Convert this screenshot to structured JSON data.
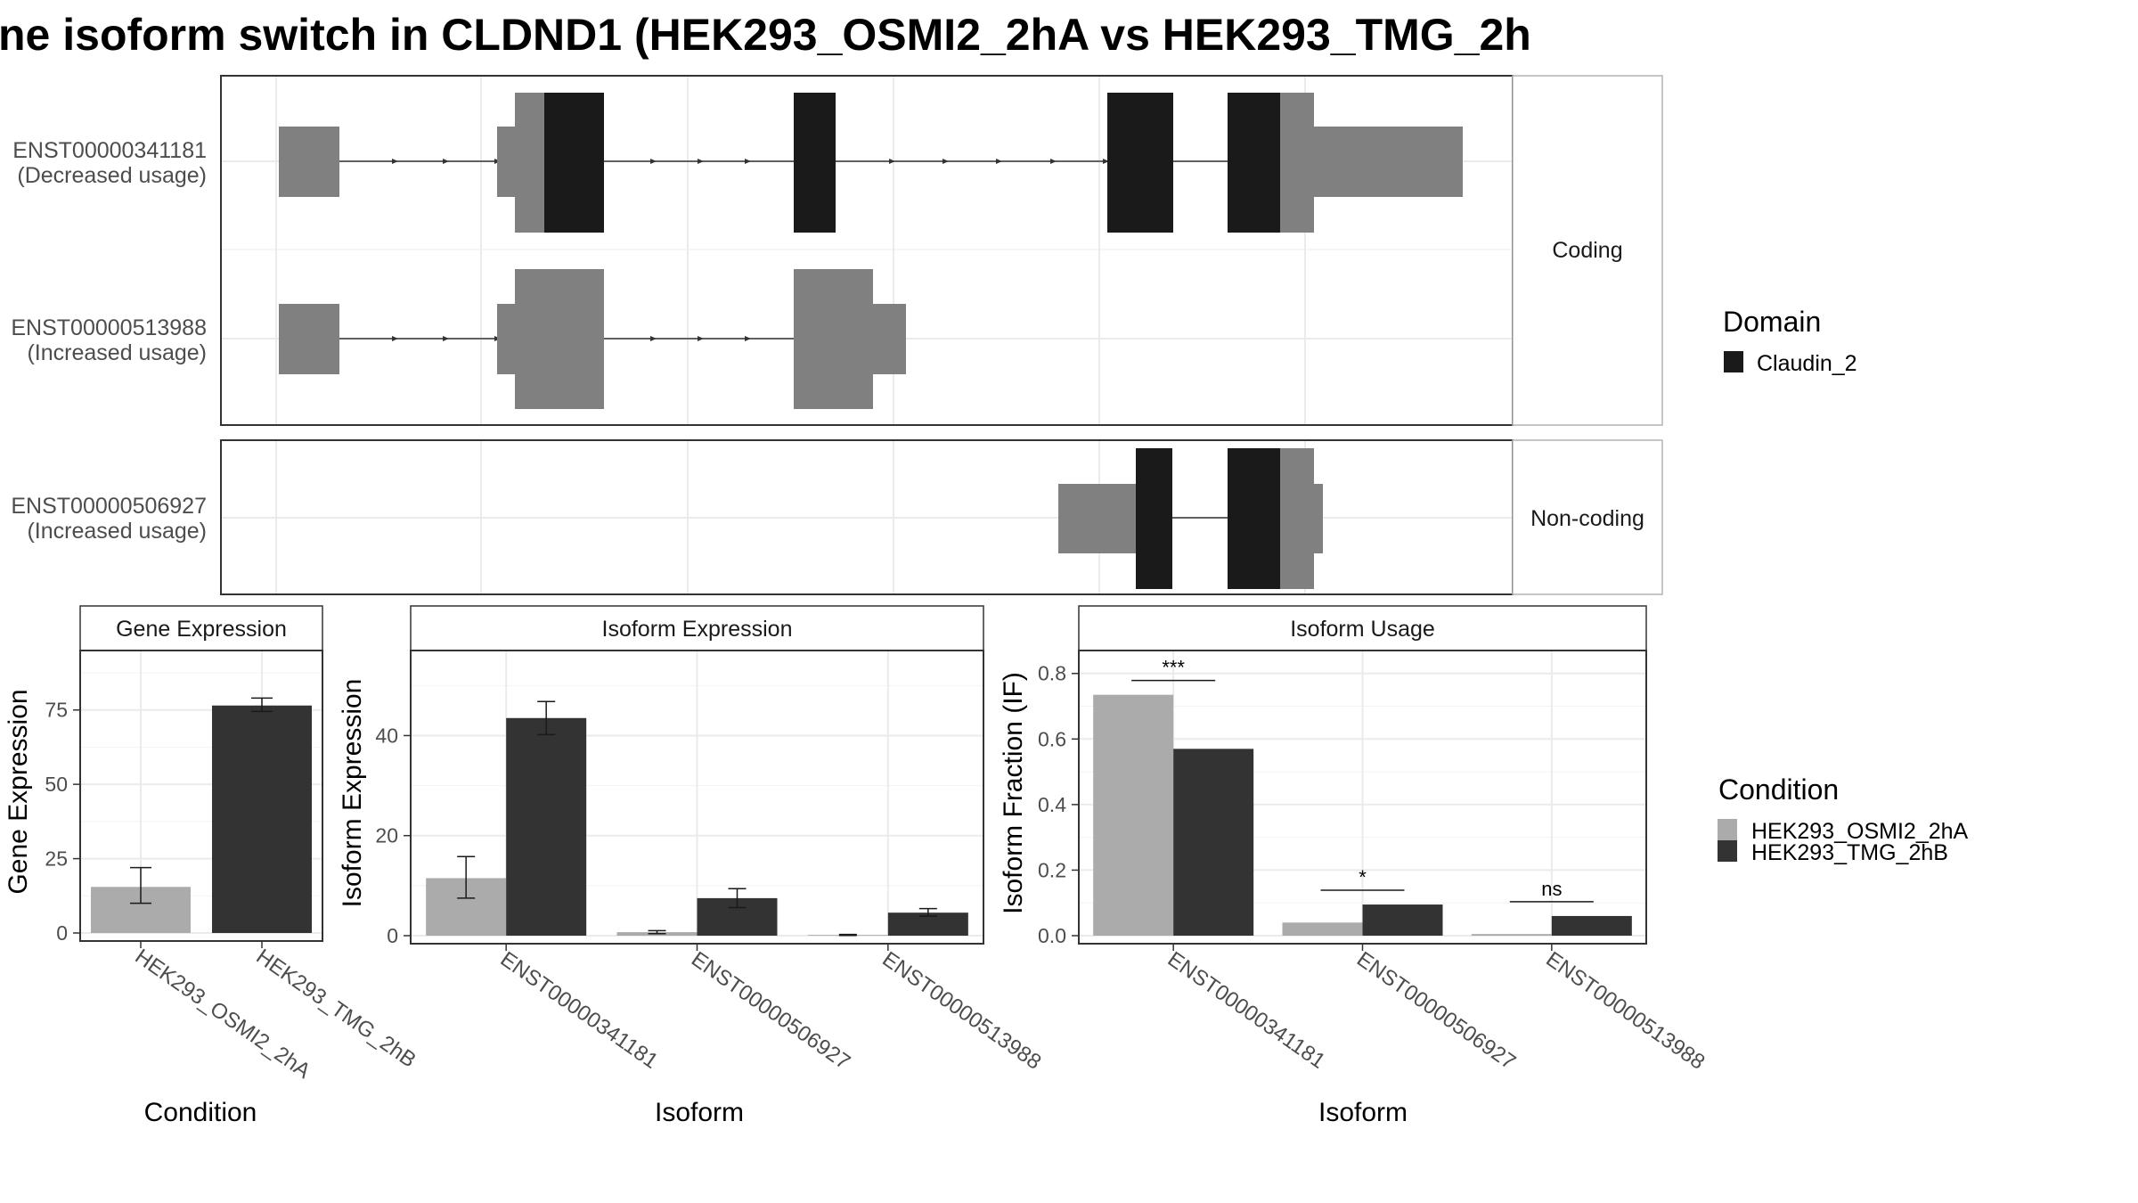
{
  "title": "ne isoform switch in CLDND1 (HEK293_OSMI2_2hA vs HEK293_TMG_2h",
  "colors": {
    "condA": "#ababab",
    "condB": "#333333",
    "exon": "#808080",
    "domain": "#1a1a1a",
    "frame": "#333333",
    "grid": "#ebebeb",
    "strip_border": "#b3b3b3"
  },
  "structure": {
    "groups": [
      {
        "strip": "Coding",
        "transcripts": [
          {
            "id": "ENST00000341181",
            "note": "(Decreased usage)"
          },
          {
            "id": "ENST00000513988",
            "note": "(Increased usage)"
          }
        ]
      },
      {
        "strip": "Non-coding",
        "transcripts": [
          {
            "id": "ENST00000506927",
            "note": "(Increased usage)"
          }
        ]
      }
    ]
  },
  "legend_domain": {
    "title": "Domain",
    "items": [
      {
        "label": "Claudin_2",
        "color": "#1a1a1a"
      }
    ]
  },
  "legend_condition": {
    "title": "Condition",
    "items": [
      {
        "label": "HEK293_OSMI2_2hA",
        "color": "#ababab"
      },
      {
        "label": "HEK293_TMG_2hB",
        "color": "#333333"
      }
    ]
  },
  "chart_data": [
    {
      "type": "bar",
      "strip": "Gene Expression",
      "xlabel": "Condition",
      "ylabel": "Gene Expression",
      "ylim": [
        0,
        95
      ],
      "yticks": [
        0,
        25,
        50,
        75
      ],
      "categories": [
        "HEK293_OSMI2_2hA",
        "HEK293_TMG_2hB"
      ],
      "values": [
        15.5,
        76.5
      ],
      "errors": [
        [
          10,
          22
        ],
        [
          74.5,
          79
        ]
      ]
    },
    {
      "type": "bar",
      "strip": "Isoform Expression",
      "xlabel": "Isoform",
      "ylabel": "Isoform Expression",
      "ylim": [
        0,
        57
      ],
      "yticks": [
        0,
        20,
        40
      ],
      "categories": [
        "ENST00000341181",
        "ENST00000506927",
        "ENST00000513988"
      ],
      "series": [
        {
          "name": "HEK293_OSMI2_2hA",
          "values": [
            11.5,
            0.7,
            0.15
          ],
          "errors": [
            [
              7.5,
              15.8
            ],
            [
              0.4,
              1.0
            ],
            [
              0.05,
              0.25
            ]
          ]
        },
        {
          "name": "HEK293_TMG_2hB",
          "values": [
            43.5,
            7.5,
            4.6
          ],
          "errors": [
            [
              40.2,
              46.8
            ],
            [
              5.6,
              9.4
            ],
            [
              3.9,
              5.4
            ]
          ]
        }
      ]
    },
    {
      "type": "bar",
      "strip": "Isoform Usage",
      "xlabel": "Isoform",
      "ylabel": "Isoform Fraction (IF)",
      "ylim": [
        0,
        0.87
      ],
      "yticks": [
        0.0,
        0.2,
        0.4,
        0.6,
        0.8
      ],
      "ytick_labels": [
        "0.0",
        "0.2",
        "0.4",
        "0.6",
        "0.8"
      ],
      "categories": [
        "ENST00000341181",
        "ENST00000506927",
        "ENST00000513988"
      ],
      "series": [
        {
          "name": "HEK293_OSMI2_2hA",
          "values": [
            0.735,
            0.04,
            0.005
          ]
        },
        {
          "name": "HEK293_TMG_2hB",
          "values": [
            0.57,
            0.095,
            0.06
          ]
        }
      ],
      "significance": [
        "***",
        "*",
        "ns"
      ]
    }
  ]
}
